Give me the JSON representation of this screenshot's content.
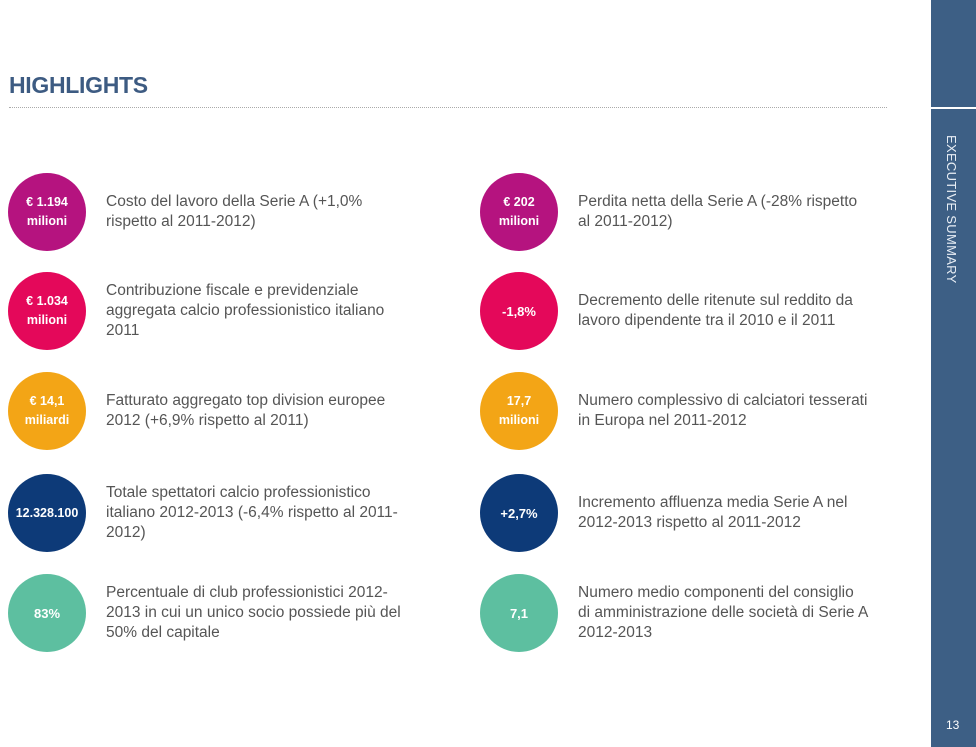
{
  "title": "HIGHLIGHTS",
  "section": "EXECUTIVE SUMMARY",
  "page_number": "13",
  "colors": {
    "sidebar": "#3d5f85",
    "title": "#3d5b82"
  },
  "left": [
    {
      "value": "€ 1.194\nmilioni",
      "text": "Costo del lavoro della Serie A (+1,0% rispetto al 2011-2012)",
      "color": "#b5137f"
    },
    {
      "value": "€ 1.034\nmilioni",
      "text": "Contribuzione fiscale e previdenziale aggregata calcio professionistico italiano 2011",
      "color": "#e4085a"
    },
    {
      "value": "€ 14,1\nmiliardi",
      "text": "Fatturato aggregato top division europee 2012 (+6,9% rispetto al 2011)",
      "color": "#f3a516"
    },
    {
      "value": "12.328.100",
      "text": "Totale spettatori calcio professionistico italiano 2012-2013 (-6,4% rispetto al 2011-2012)",
      "color": "#0d3a78"
    },
    {
      "value": "83%",
      "text": "Percentuale di club professionistici 2012-2013 in cui un unico socio possiede più del 50% del capitale",
      "color": "#5dbfa0"
    }
  ],
  "right": [
    {
      "value": "€ 202\nmilioni",
      "text": "Perdita netta della Serie A (-28% rispetto al 2011-2012)",
      "color": "#b5137f"
    },
    {
      "value": "-1,8%",
      "text": "Decremento delle ritenute sul reddito da lavoro dipendente tra il 2010 e il 2011",
      "color": "#e4085a"
    },
    {
      "value": "17,7\nmilioni",
      "text": "Numero complessivo di calciatori tesserati in Europa nel 2011-2012",
      "color": "#f3a516"
    },
    {
      "value": "+2,7%",
      "text": "Incremento affluenza media Serie A nel 2012-2013 rispetto al 2011-2012",
      "color": "#0d3a78"
    },
    {
      "value": "7,1",
      "text": "Numero medio componenti del consiglio di amministrazione delle società di Serie A 2012-2013",
      "color": "#5dbfa0"
    }
  ]
}
